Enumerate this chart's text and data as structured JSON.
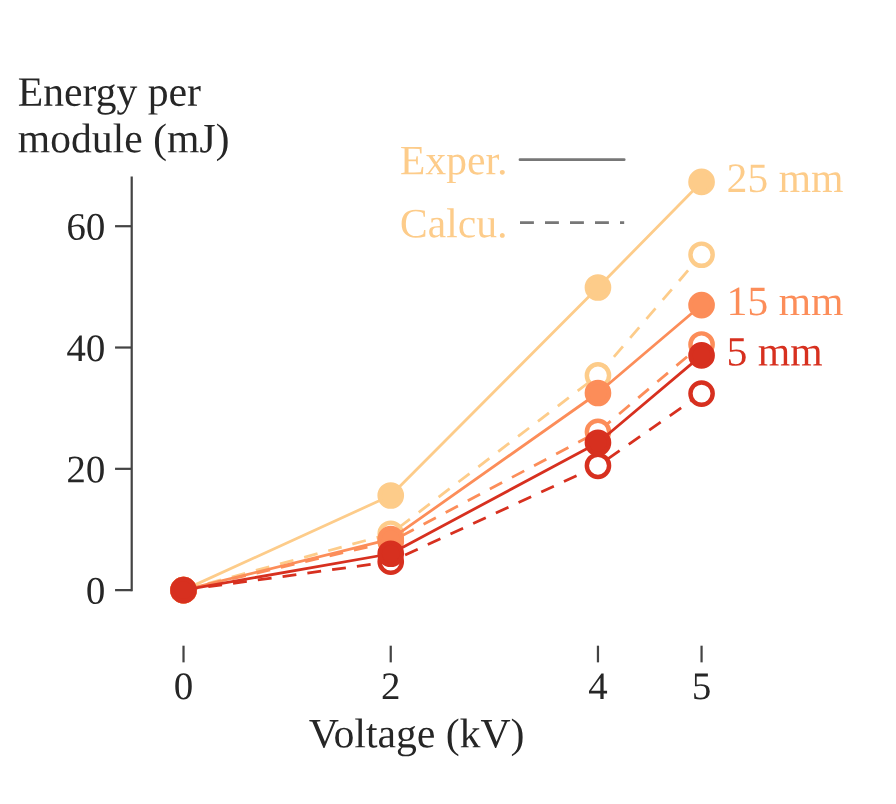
{
  "chart_data": {
    "type": "line",
    "xlabel": "Voltage (kV)",
    "ylabel": "Energy per\nmodule (mJ)",
    "x": [
      0,
      2,
      4,
      5
    ],
    "xlim": [
      -0.5,
      5
    ],
    "xticks": [
      0,
      2,
      4,
      5
    ],
    "ylim": [
      0,
      68
    ],
    "yticks": [
      0,
      20,
      40,
      60
    ],
    "marker": "circle",
    "grid": false,
    "annotations": [
      "Exper.",
      "Calcu."
    ],
    "series": [
      {
        "name": "25 mm",
        "color": "#fdcc8a",
        "line_style": "solid",
        "values": [
          0,
          15.6,
          49.9,
          67.3
        ]
      },
      {
        "color": "#fdcc8a",
        "line_style": "dashed",
        "values": [
          0,
          9.3,
          35.4,
          55.3
        ]
      },
      {
        "name": "15 mm",
        "color": "#fc8d59",
        "line_style": "solid",
        "values": [
          0,
          8.4,
          32.5,
          47
        ]
      },
      {
        "color": "#fc8d59",
        "line_style": "dashed",
        "values": [
          0,
          8,
          26.1,
          40.5
        ]
      },
      {
        "name": "5 mm",
        "color": "#d7301f",
        "line_style": "solid",
        "values": [
          0,
          6,
          24.3,
          38.7
        ]
      },
      {
        "color": "#d7301f",
        "line_style": "dashed",
        "values": [
          0,
          4.7,
          20.5,
          32.4
        ]
      }
    ]
  }
}
